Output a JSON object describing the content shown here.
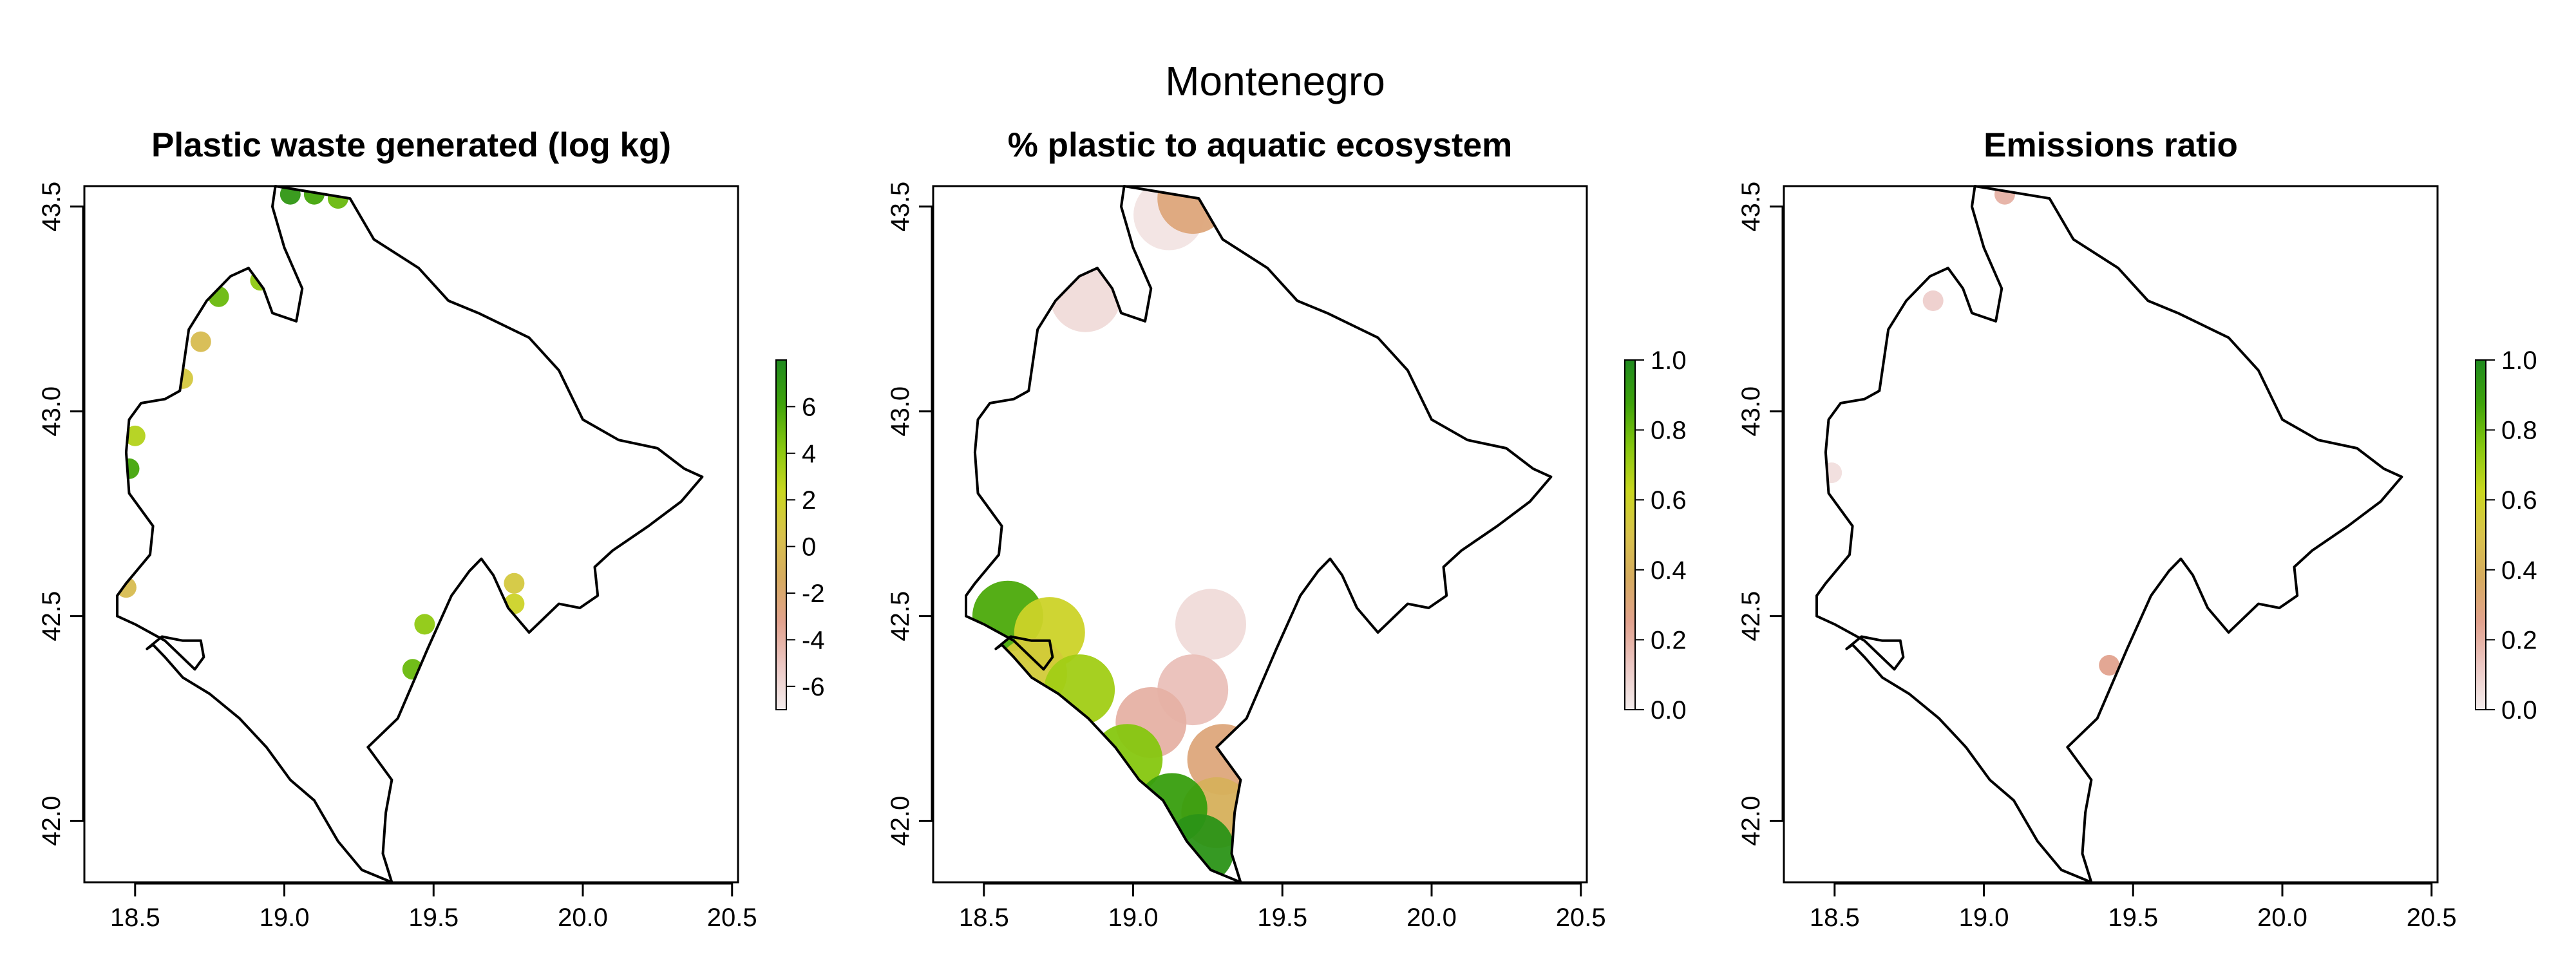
{
  "figure_title": "Montenegro",
  "colors": {
    "ramp": [
      "#f4eded",
      "#ecc8c4",
      "#e2a28e",
      "#d6ab5f",
      "#d8c24b",
      "#c9d71f",
      "#86c70f",
      "#3ea30a",
      "#1f8a1f"
    ],
    "border": "#000000",
    "background": "#ffffff"
  },
  "chart_data": [
    {
      "type": "heatmap",
      "title": "Plastic waste generated (log kg)",
      "x_ticks": [
        "18.5",
        "19.0",
        "19.5",
        "20.0",
        "20.5"
      ],
      "y_ticks": [
        "42.0",
        "42.5",
        "43.0",
        "43.5"
      ],
      "xlim": [
        18.33,
        20.52
      ],
      "ylim": [
        41.85,
        43.55
      ],
      "grid": false,
      "colorbar": {
        "ticks": [
          "-6",
          "-4",
          "-2",
          "0",
          "2",
          "4",
          "6"
        ],
        "range": [
          -7,
          8
        ]
      },
      "cells": [
        {
          "lon": 19.02,
          "lat": 43.53,
          "value": 7
        },
        {
          "lon": 19.1,
          "lat": 43.53,
          "value": 6
        },
        {
          "lon": 19.18,
          "lat": 43.52,
          "value": 5
        },
        {
          "lon": 18.78,
          "lat": 43.28,
          "value": 5
        },
        {
          "lon": 18.92,
          "lat": 43.32,
          "value": 4
        },
        {
          "lon": 18.72,
          "lat": 43.17,
          "value": 0
        },
        {
          "lon": 18.66,
          "lat": 43.08,
          "value": 1
        },
        {
          "lon": 18.48,
          "lat": 42.86,
          "value": 6
        },
        {
          "lon": 18.5,
          "lat": 42.94,
          "value": 3
        },
        {
          "lon": 18.47,
          "lat": 42.57,
          "value": 0
        },
        {
          "lon": 19.47,
          "lat": 42.48,
          "value": 4
        },
        {
          "lon": 19.43,
          "lat": 42.37,
          "value": 5
        },
        {
          "lon": 19.77,
          "lat": 42.53,
          "value": 2
        },
        {
          "lon": 19.77,
          "lat": 42.58,
          "value": 1
        }
      ]
    },
    {
      "type": "heatmap",
      "title": "% plastic to aquatic ecosystem",
      "x_ticks": [
        "18.5",
        "19.0",
        "19.5",
        "20.0",
        "20.5"
      ],
      "y_ticks": [
        "42.0",
        "42.5",
        "43.0",
        "43.5"
      ],
      "xlim": [
        18.33,
        20.52
      ],
      "ylim": [
        41.85,
        43.55
      ],
      "grid": false,
      "colorbar": {
        "ticks": [
          "0.0",
          "0.2",
          "0.4",
          "0.6",
          "0.8",
          "1.0"
        ],
        "range": [
          0,
          1
        ]
      },
      "cells": [
        {
          "lon": 19.12,
          "lat": 43.48,
          "value": 0.03
        },
        {
          "lon": 19.2,
          "lat": 43.52,
          "value": 0.3
        },
        {
          "lon": 18.84,
          "lat": 43.28,
          "value": 0.06
        },
        {
          "lon": 19.26,
          "lat": 42.48,
          "value": 0.06
        },
        {
          "lon": 19.2,
          "lat": 42.32,
          "value": 0.15
        },
        {
          "lon": 19.06,
          "lat": 42.24,
          "value": 0.2
        },
        {
          "lon": 19.3,
          "lat": 42.15,
          "value": 0.3
        },
        {
          "lon": 19.28,
          "lat": 42.02,
          "value": 0.4
        },
        {
          "lon": 18.58,
          "lat": 42.5,
          "value": 0.85
        },
        {
          "lon": 18.72,
          "lat": 42.46,
          "value": 0.6
        },
        {
          "lon": 18.66,
          "lat": 42.36,
          "value": 0.55
        },
        {
          "lon": 18.82,
          "lat": 42.32,
          "value": 0.7
        },
        {
          "lon": 18.98,
          "lat": 42.15,
          "value": 0.75
        },
        {
          "lon": 19.13,
          "lat": 42.03,
          "value": 0.9
        },
        {
          "lon": 19.22,
          "lat": 41.93,
          "value": 0.95
        }
      ]
    },
    {
      "type": "heatmap",
      "title": "Emissions ratio",
      "x_ticks": [
        "18.5",
        "19.0",
        "19.5",
        "20.0",
        "20.5"
      ],
      "y_ticks": [
        "42.0",
        "42.5",
        "43.0",
        "43.5"
      ],
      "xlim": [
        18.33,
        20.52
      ],
      "ylim": [
        41.85,
        43.55
      ],
      "grid": false,
      "colorbar": {
        "ticks": [
          "0.0",
          "0.2",
          "0.4",
          "0.6",
          "0.8",
          "1.0"
        ],
        "range": [
          0,
          1
        ]
      },
      "cells": [
        {
          "lon": 19.07,
          "lat": 43.53,
          "value": 0.2
        },
        {
          "lon": 18.83,
          "lat": 43.27,
          "value": 0.1
        },
        {
          "lon": 19.42,
          "lat": 42.38,
          "value": 0.25
        },
        {
          "lon": 18.49,
          "lat": 42.85,
          "value": 0.05
        }
      ]
    }
  ]
}
